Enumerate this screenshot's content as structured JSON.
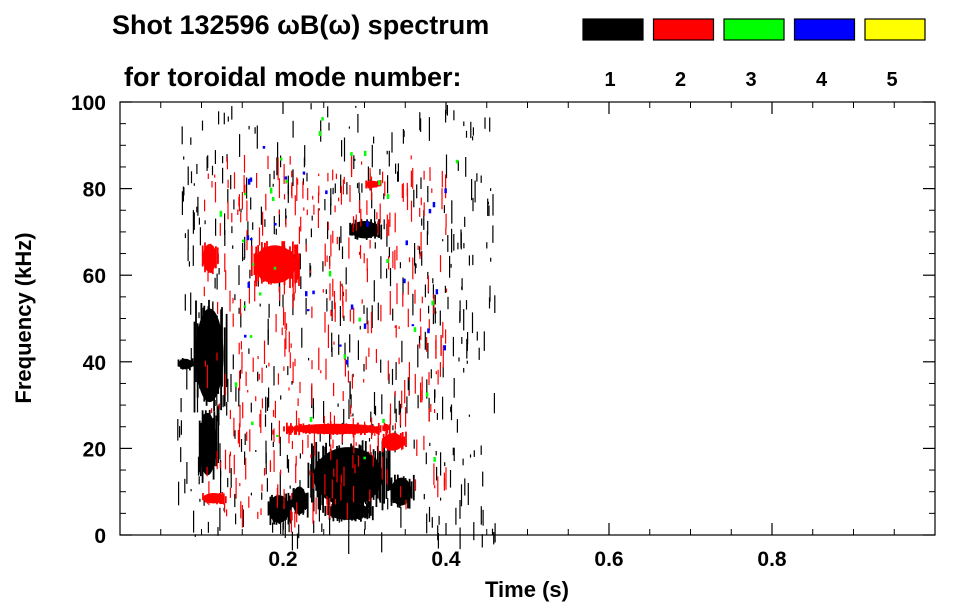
{
  "chart_data": {
    "type": "scatter",
    "title": "Shot 132596 ωB(ω) spectrum",
    "subtitle": "for toroidal mode number:",
    "xlabel": "Time (s)",
    "ylabel": "Frequency (kHz)",
    "xlim": [
      0.0,
      1.0
    ],
    "ylim": [
      0,
      100
    ],
    "x_ticks": [
      0.2,
      0.4,
      0.6,
      0.8
    ],
    "x_tick_labels": [
      "0.2",
      "0.4",
      "0.6",
      "0.8"
    ],
    "y_ticks": [
      0,
      20,
      40,
      60,
      80,
      100
    ],
    "y_tick_labels": [
      "0",
      "20",
      "40",
      "60",
      "80",
      "100"
    ],
    "grid": false,
    "legend_position": "top-right",
    "legend": [
      {
        "label": "1",
        "color": "#000000"
      },
      {
        "label": "2",
        "color": "#ff0000"
      },
      {
        "label": "3",
        "color": "#00ff00"
      },
      {
        "label": "4",
        "color": "#0000ff"
      },
      {
        "label": "5",
        "color": "#ffff00"
      }
    ],
    "series": [
      {
        "name": "1",
        "color": "#000000",
        "blobs": [
          {
            "t0": 0.07,
            "t1": 0.09,
            "f0": 38,
            "f1": 41
          },
          {
            "t0": 0.09,
            "t1": 0.13,
            "f0": 28,
            "f1": 55
          },
          {
            "t0": 0.095,
            "t1": 0.12,
            "f0": 12,
            "f1": 30
          },
          {
            "t0": 0.18,
            "t1": 0.21,
            "f0": 2,
            "f1": 10
          },
          {
            "t0": 0.21,
            "t1": 0.23,
            "f0": 4,
            "f1": 12
          },
          {
            "t0": 0.23,
            "t1": 0.33,
            "f0": 5,
            "f1": 22
          },
          {
            "t0": 0.25,
            "t1": 0.31,
            "f0": 3,
            "f1": 8
          },
          {
            "t0": 0.33,
            "t1": 0.36,
            "f0": 6,
            "f1": 14
          },
          {
            "t0": 0.28,
            "t1": 0.32,
            "f0": 68,
            "f1": 73
          },
          {
            "t0": 0.21,
            "t1": 0.22,
            "f0": 61,
            "f1": 65
          },
          {
            "t0": 0.07,
            "t1": 0.46,
            "f0": 0,
            "f1": 100,
            "density": "sparse"
          }
        ]
      },
      {
        "name": "2",
        "color": "#ff0000",
        "blobs": [
          {
            "t0": 0.2,
            "t1": 0.33,
            "f0": 23,
            "f1": 26
          },
          {
            "t0": 0.32,
            "t1": 0.35,
            "f0": 19,
            "f1": 24
          },
          {
            "t0": 0.16,
            "t1": 0.22,
            "f0": 57,
            "f1": 68
          },
          {
            "t0": 0.1,
            "t1": 0.12,
            "f0": 60,
            "f1": 68
          },
          {
            "t0": 0.3,
            "t1": 0.32,
            "f0": 80,
            "f1": 82
          },
          {
            "t0": 0.1,
            "t1": 0.13,
            "f0": 7,
            "f1": 10
          },
          {
            "t0": 0.1,
            "t1": 0.4,
            "f0": 5,
            "f1": 88,
            "density": "sparse"
          }
        ]
      },
      {
        "name": "3",
        "color": "#00ff00",
        "blobs": [
          {
            "t0": 0.12,
            "t1": 0.42,
            "f0": 10,
            "f1": 98,
            "density": "very-sparse"
          }
        ]
      },
      {
        "name": "4",
        "color": "#0000ff",
        "blobs": [
          {
            "t0": 0.15,
            "t1": 0.4,
            "f0": 40,
            "f1": 90,
            "density": "very-sparse"
          }
        ]
      },
      {
        "name": "5",
        "color": "#ffff00",
        "blobs": []
      }
    ]
  }
}
